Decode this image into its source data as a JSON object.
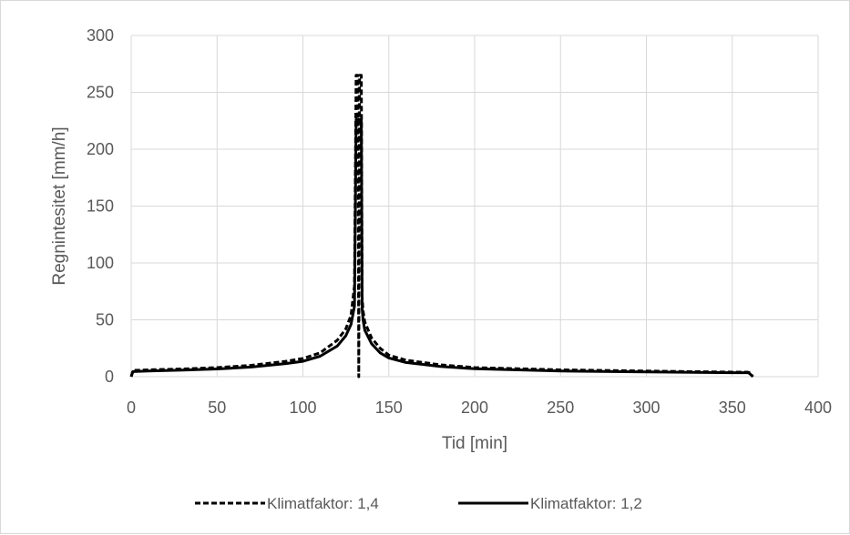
{
  "chart_data": {
    "type": "line",
    "title": "",
    "xlabel": "Tid [min]",
    "ylabel": "Regnintesitet [mm/h]",
    "xlim": [
      0,
      400
    ],
    "ylim": [
      0,
      300
    ],
    "xticks": [
      0,
      50,
      100,
      150,
      200,
      250,
      300,
      350,
      400
    ],
    "yticks": [
      0,
      50,
      100,
      150,
      200,
      250,
      300
    ],
    "grid": true,
    "legend_position": "bottom",
    "series": [
      {
        "name": "Klimatfaktor: 1,4",
        "style": "dashed",
        "color": "#000000",
        "x": [
          0,
          1,
          10,
          30,
          50,
          70,
          90,
          100,
          110,
          120,
          125,
          128,
          130,
          131,
          131.5,
          132,
          132.5,
          133,
          133.5,
          134,
          134.5,
          135,
          136,
          140,
          145,
          150,
          160,
          180,
          200,
          250,
          300,
          350,
          359,
          360,
          361,
          362
        ],
        "y": [
          0,
          5.5,
          6,
          6.8,
          8,
          10,
          13.5,
          16,
          21,
          32,
          42,
          54,
          80,
          265,
          265,
          265,
          0,
          265,
          265,
          265,
          70,
          58,
          48,
          34,
          25,
          19,
          14.5,
          10.5,
          8,
          6,
          5,
          4,
          4,
          3.5,
          2,
          0
        ]
      },
      {
        "name": "Klimatfaktor: 1,2",
        "style": "solid",
        "color": "#000000",
        "x": [
          0,
          1,
          10,
          30,
          50,
          70,
          90,
          100,
          110,
          120,
          125,
          128,
          130,
          131,
          131.5,
          132,
          132.5,
          133,
          133.5,
          134,
          134.5,
          135,
          136,
          140,
          145,
          150,
          160,
          180,
          200,
          250,
          300,
          350,
          359,
          360,
          361,
          362
        ],
        "y": [
          0,
          4.5,
          5,
          5.8,
          6.8,
          8.5,
          11.5,
          13.5,
          18,
          27,
          36,
          46,
          62,
          226,
          226,
          226,
          226,
          226,
          226,
          226,
          60,
          50,
          41,
          29,
          21,
          16.5,
          12.5,
          9,
          7,
          5,
          4.2,
          3.5,
          3.5,
          3,
          1.5,
          0
        ]
      }
    ]
  }
}
